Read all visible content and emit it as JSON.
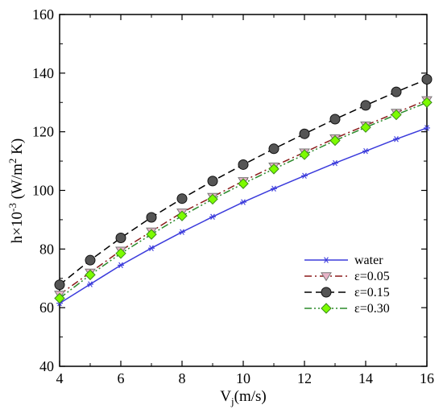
{
  "chart_data": {
    "type": "line",
    "title": "",
    "xlabel": {
      "main": "V",
      "sub": "j",
      "rest": "(m/s)"
    },
    "ylabel": {
      "pre": "h×10",
      "sup1": "-3",
      "mid": " (W/m",
      "sup2": "2",
      "post": " K)"
    },
    "xlim": [
      4,
      16
    ],
    "ylim": [
      40,
      160
    ],
    "xticks": [
      4,
      6,
      8,
      10,
      12,
      14,
      16
    ],
    "yticks": [
      40,
      60,
      80,
      100,
      120,
      140,
      160
    ],
    "grid": false,
    "legend_position": "bottom-right",
    "x": [
      4,
      5,
      6,
      7,
      8,
      9,
      10,
      11,
      12,
      13,
      14,
      15,
      16
    ],
    "series": [
      {
        "name": "water",
        "color": "#3b3bdc",
        "dash": "solid",
        "marker": "asterisk",
        "marker_fill": "#3b3bdc",
        "values": [
          61.5,
          68,
          74.5,
          80.3,
          85.8,
          91,
          96,
          100.6,
          105,
          109.3,
          113.4,
          117.5,
          121.3
        ]
      },
      {
        "name": "ε=0.05",
        "color": "#8b1a1a",
        "dash": "dashdot",
        "marker": "triangle-down",
        "marker_fill": "#e8b4c8",
        "values": [
          64.5,
          72,
          79.5,
          86,
          92.5,
          97.8,
          103.2,
          108.2,
          113,
          117.8,
          122.2,
          126.5,
          130.8
        ]
      },
      {
        "name": "ε=0.15",
        "color": "#000000",
        "dash": "dashed",
        "marker": "circle",
        "marker_fill": "#555555",
        "values": [
          67.8,
          76.2,
          83.8,
          90.8,
          97.2,
          103.2,
          108.8,
          114.2,
          119.3,
          124.3,
          129,
          133.6,
          137.9
        ]
      },
      {
        "name": "ε=0.30",
        "color": "#2a8a2a",
        "dash": "dashdotdot",
        "marker": "diamond",
        "marker_fill": "#7cfc00",
        "values": [
          63.2,
          71.2,
          78.5,
          85,
          91.3,
          97,
          102.3,
          107.3,
          112.2,
          117,
          121.5,
          125.8,
          130
        ]
      }
    ]
  }
}
